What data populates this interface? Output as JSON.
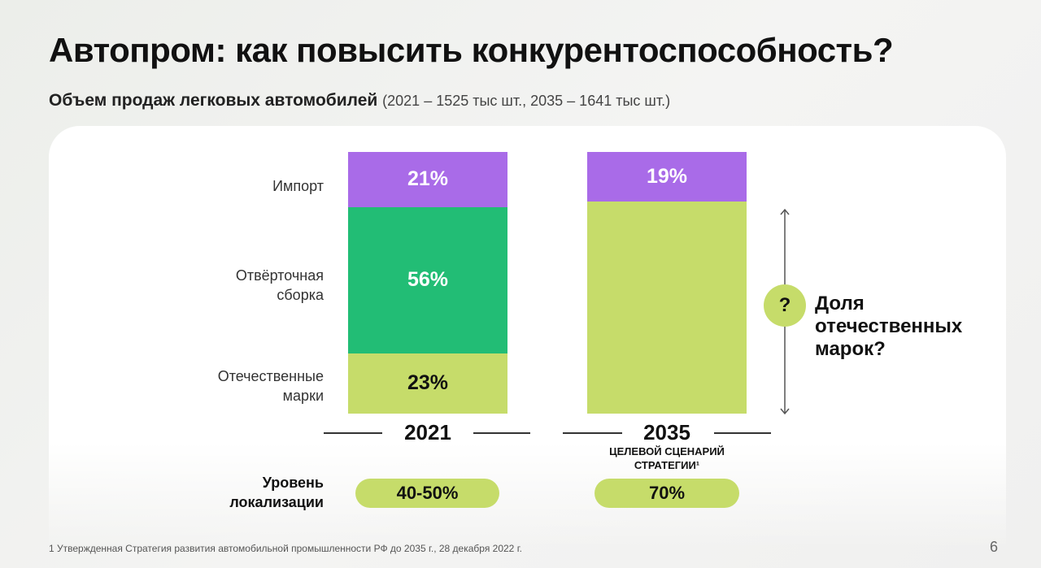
{
  "title": "Автопром: как повысить конкурентоспособность?",
  "subtitle": {
    "bold": "Объем продаж легковых автомобилей",
    "note": "(2021 – 1525 тыс шт., 2035 – 1641 тыс шт.)"
  },
  "chart_data": {
    "type": "bar",
    "stacked": true,
    "unit": "%",
    "categories": [
      "2021",
      "2035"
    ],
    "series": [
      {
        "name": "Отечественные марки",
        "color": "#c6dc6a",
        "values": [
          23,
          81
        ]
      },
      {
        "name": "Отвёрточная сборка",
        "color": "#22bd75",
        "values": [
          56,
          0
        ]
      },
      {
        "name": "Импорт",
        "color": "#a96be8",
        "values": [
          21,
          19
        ]
      }
    ],
    "segment_labels": {
      "2021": [
        "23%",
        "56%",
        "21%"
      ],
      "2035": [
        "",
        "",
        "19%"
      ]
    },
    "legend_labels": [
      "Импорт",
      "Отвёрточная\nсборка",
      "Отечественные\nмарки"
    ],
    "year_labels": [
      "2021",
      "2035"
    ],
    "scenario_label": "ЦЕЛЕВОЙ СЦЕНАРИЙ\nСТРАТЕГИИ¹",
    "question_mark": "?",
    "question_text": "Доля\nотечественных\nмарок?"
  },
  "localization": {
    "label": "Уровень\nлокализации",
    "values": [
      "40-50%",
      "70%"
    ]
  },
  "footnote": "1 Утвержденная Стратегия развития автомобильной промышленности РФ до 2035 г., 28 декабря 2022 г.",
  "page_number": "6"
}
